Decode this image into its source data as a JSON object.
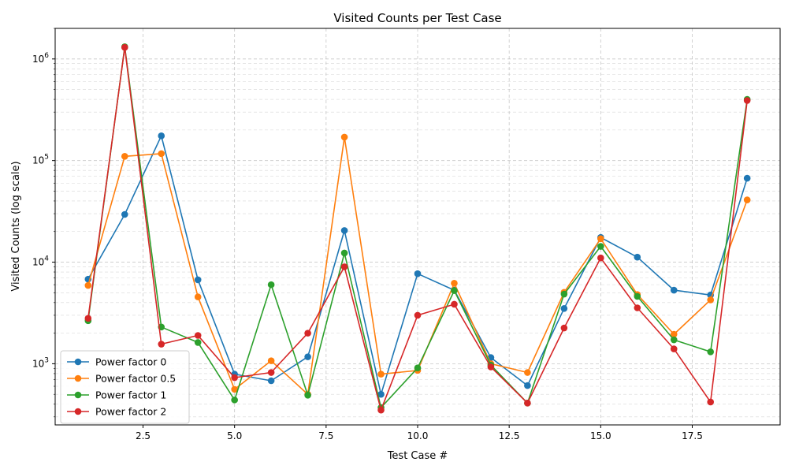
{
  "chart_data": {
    "type": "line",
    "title": "Visited Counts per Test Case",
    "xlabel": "Test Case #",
    "ylabel": "Visited Counts (log scale)",
    "yscale": "log",
    "xlim": [
      0.1,
      19.9
    ],
    "ylim": [
      250,
      2000000
    ],
    "grid": true,
    "legend_position": "lower-left",
    "x_ticks": [
      2.5,
      5.0,
      7.5,
      10.0,
      12.5,
      15.0,
      17.5
    ],
    "x_tick_labels": [
      "2.5",
      "5.0",
      "7.5",
      "10.0",
      "12.5",
      "15.0",
      "17.5"
    ],
    "y_ticks": [
      1000,
      10000,
      100000,
      1000000
    ],
    "y_tick_exponents": [
      "3",
      "4",
      "5",
      "6"
    ],
    "y_tick_base": "10",
    "x": [
      1,
      2,
      3,
      4,
      5,
      6,
      7,
      8,
      9,
      10,
      11,
      12,
      13,
      14,
      15,
      16,
      17,
      18,
      19
    ],
    "series": [
      {
        "name": "Power factor 0",
        "color": "#1f77b4",
        "values": [
          6800,
          29500,
          175000,
          6700,
          790,
          680,
          1170,
          20500,
          500,
          7700,
          5300,
          1150,
          610,
          3500,
          17500,
          11200,
          5300,
          4750,
          67000
        ]
      },
      {
        "name": "Power factor 0.5",
        "color": "#ff7f0e",
        "values": [
          5900,
          110000,
          117000,
          4550,
          560,
          1070,
          500,
          170000,
          790,
          860,
          6200,
          1000,
          820,
          5050,
          17000,
          4800,
          1950,
          4250,
          41000
        ]
      },
      {
        "name": "Power factor 1",
        "color": "#2ca02c",
        "values": [
          2650,
          1320000,
          2300,
          1620,
          440,
          6000,
          490,
          12300,
          370,
          910,
          5250,
          970,
          410,
          4850,
          14300,
          4600,
          1720,
          1310,
          400000
        ]
      },
      {
        "name": "Power factor 2",
        "color": "#d62728",
        "values": [
          2800,
          1300000,
          1560,
          1900,
          730,
          820,
          2000,
          9000,
          350,
          3000,
          3850,
          930,
          410,
          2250,
          11000,
          3550,
          1400,
          420,
          390000
        ]
      }
    ]
  }
}
